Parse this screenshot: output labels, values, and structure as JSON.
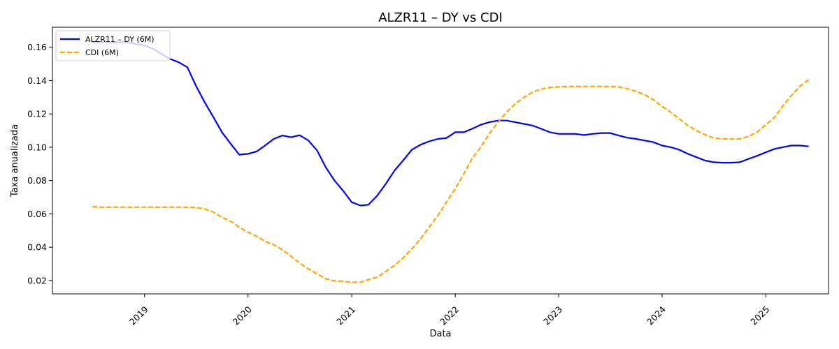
{
  "chart_data": {
    "type": "line",
    "title": "ALZR11 – DY vs CDI",
    "xlabel": "Data",
    "ylabel": "Taxa anualizada",
    "x_ticks": [
      "2019",
      "2020",
      "2021",
      "2022",
      "2023",
      "2024",
      "2025"
    ],
    "y_ticks": [
      "0.02",
      "0.04",
      "0.06",
      "0.08",
      "0.10",
      "0.12",
      "0.14",
      "0.16"
    ],
    "xlim": [
      "2018-02-10",
      "2025-08-10"
    ],
    "ylim": [
      0.012,
      0.172
    ],
    "grid": false,
    "legend": "top-left",
    "series": [
      {
        "name": "ALZR11 – DY (6M)",
        "color": "#0000ff",
        "style": "solid",
        "x": [
          "2018-07-01",
          "2018-08-01",
          "2018-09-01",
          "2018-10-01",
          "2018-11-01",
          "2018-12-01",
          "2019-01-01",
          "2019-02-01",
          "2019-03-01",
          "2019-04-01",
          "2019-05-01",
          "2019-06-01",
          "2019-07-01",
          "2019-08-01",
          "2019-09-01",
          "2019-10-01",
          "2019-11-01",
          "2019-12-01",
          "2020-01-01",
          "2020-02-01",
          "2020-03-01",
          "2020-04-01",
          "2020-05-01",
          "2020-06-01",
          "2020-07-01",
          "2020-08-01",
          "2020-09-01",
          "2020-10-01",
          "2020-11-01",
          "2020-12-01",
          "2021-01-01",
          "2021-02-01",
          "2021-03-01",
          "2021-04-01",
          "2021-05-01",
          "2021-06-01",
          "2021-07-01",
          "2021-08-01",
          "2021-09-01",
          "2021-10-01",
          "2021-11-01",
          "2021-12-01",
          "2022-01-01",
          "2022-02-01",
          "2022-03-01",
          "2022-04-01",
          "2022-05-01",
          "2022-06-01",
          "2022-07-01",
          "2022-08-01",
          "2022-09-01",
          "2022-10-01",
          "2022-11-01",
          "2022-12-01",
          "2023-01-01",
          "2023-02-01",
          "2023-03-01",
          "2023-04-01",
          "2023-05-01",
          "2023-06-01",
          "2023-07-01",
          "2023-08-01",
          "2023-09-01",
          "2023-10-01",
          "2023-11-01",
          "2023-12-01",
          "2024-01-01",
          "2024-02-01",
          "2024-03-01",
          "2024-04-01",
          "2024-05-01",
          "2024-06-01",
          "2024-07-01",
          "2024-08-01",
          "2024-09-01",
          "2024-10-01",
          "2024-11-01",
          "2024-12-01",
          "2025-01-01",
          "2025-02-01",
          "2025-03-01",
          "2025-04-01",
          "2025-05-01",
          "2025-06-01"
        ],
        "y": [
          0.163,
          0.163,
          0.163,
          0.163,
          0.163,
          0.162,
          0.161,
          0.159,
          0.156,
          0.153,
          0.151,
          0.148,
          0.137,
          0.127,
          0.118,
          0.109,
          0.102,
          0.0955,
          0.096,
          0.0975,
          0.101,
          0.105,
          0.107,
          0.106,
          0.1072,
          0.104,
          0.098,
          0.088,
          0.08,
          0.074,
          0.067,
          0.065,
          0.0655,
          0.071,
          0.078,
          0.086,
          0.092,
          0.0985,
          0.1015,
          0.1035,
          0.105,
          0.1055,
          0.109,
          0.109,
          0.111,
          0.1135,
          0.115,
          0.116,
          0.116,
          0.115,
          0.114,
          0.113,
          0.111,
          0.109,
          0.108,
          0.108,
          0.108,
          0.1073,
          0.108,
          0.1085,
          0.1085,
          0.107,
          0.1057,
          0.105,
          0.104,
          0.103,
          0.101,
          0.1,
          0.0985,
          0.096,
          0.094,
          0.092,
          0.091,
          0.0907,
          0.0907,
          0.091,
          0.093,
          0.0948,
          0.097,
          0.099,
          0.1,
          0.101,
          0.101,
          0.1005
        ]
      },
      {
        "name": "CDI (6M)",
        "color": "#ffa500",
        "style": "dashed",
        "x": [
          "2018-07-01",
          "2018-08-01",
          "2018-09-01",
          "2018-10-01",
          "2018-11-01",
          "2018-12-01",
          "2019-01-01",
          "2019-02-01",
          "2019-03-01",
          "2019-04-01",
          "2019-05-01",
          "2019-06-01",
          "2019-07-01",
          "2019-08-01",
          "2019-09-01",
          "2019-10-01",
          "2019-11-01",
          "2019-12-01",
          "2020-01-01",
          "2020-02-01",
          "2020-03-01",
          "2020-04-01",
          "2020-05-01",
          "2020-06-01",
          "2020-07-01",
          "2020-08-01",
          "2020-09-01",
          "2020-10-01",
          "2020-11-01",
          "2020-12-01",
          "2021-01-01",
          "2021-02-01",
          "2021-03-01",
          "2021-04-01",
          "2021-05-01",
          "2021-06-01",
          "2021-07-01",
          "2021-08-01",
          "2021-09-01",
          "2021-10-01",
          "2021-11-01",
          "2021-12-01",
          "2022-01-01",
          "2022-02-01",
          "2022-03-01",
          "2022-04-01",
          "2022-05-01",
          "2022-06-01",
          "2022-07-01",
          "2022-08-01",
          "2022-09-01",
          "2022-10-01",
          "2022-11-01",
          "2022-12-01",
          "2023-01-01",
          "2023-02-01",
          "2023-03-01",
          "2023-04-01",
          "2023-05-01",
          "2023-06-01",
          "2023-07-01",
          "2023-08-01",
          "2023-09-01",
          "2023-10-01",
          "2023-11-01",
          "2023-12-01",
          "2024-01-01",
          "2024-02-01",
          "2024-03-01",
          "2024-04-01",
          "2024-05-01",
          "2024-06-01",
          "2024-07-01",
          "2024-08-01",
          "2024-09-01",
          "2024-10-01",
          "2024-11-01",
          "2024-12-01",
          "2025-01-01",
          "2025-02-01",
          "2025-03-01",
          "2025-04-01",
          "2025-05-01",
          "2025-06-01"
        ],
        "y": [
          0.0643,
          0.064,
          0.064,
          0.064,
          0.064,
          0.064,
          0.064,
          0.064,
          0.064,
          0.064,
          0.064,
          0.064,
          0.0638,
          0.063,
          0.061,
          0.058,
          0.0555,
          0.052,
          0.049,
          0.0465,
          0.0435,
          0.0415,
          0.0385,
          0.0345,
          0.0305,
          0.027,
          0.024,
          0.021,
          0.0198,
          0.0195,
          0.019,
          0.019,
          0.0205,
          0.022,
          0.0255,
          0.029,
          0.0335,
          0.039,
          0.045,
          0.052,
          0.059,
          0.067,
          0.075,
          0.084,
          0.093,
          0.1,
          0.108,
          0.115,
          0.121,
          0.126,
          0.13,
          0.133,
          0.1348,
          0.1358,
          0.1362,
          0.1365,
          0.1365,
          0.1365,
          0.1365,
          0.1365,
          0.1365,
          0.1362,
          0.135,
          0.1335,
          0.1315,
          0.1285,
          0.1245,
          0.121,
          0.117,
          0.113,
          0.11,
          0.1075,
          0.1055,
          0.105,
          0.105,
          0.105,
          0.1065,
          0.109,
          0.1135,
          0.118,
          0.1245,
          0.131,
          0.1365,
          0.1405
        ]
      }
    ]
  }
}
